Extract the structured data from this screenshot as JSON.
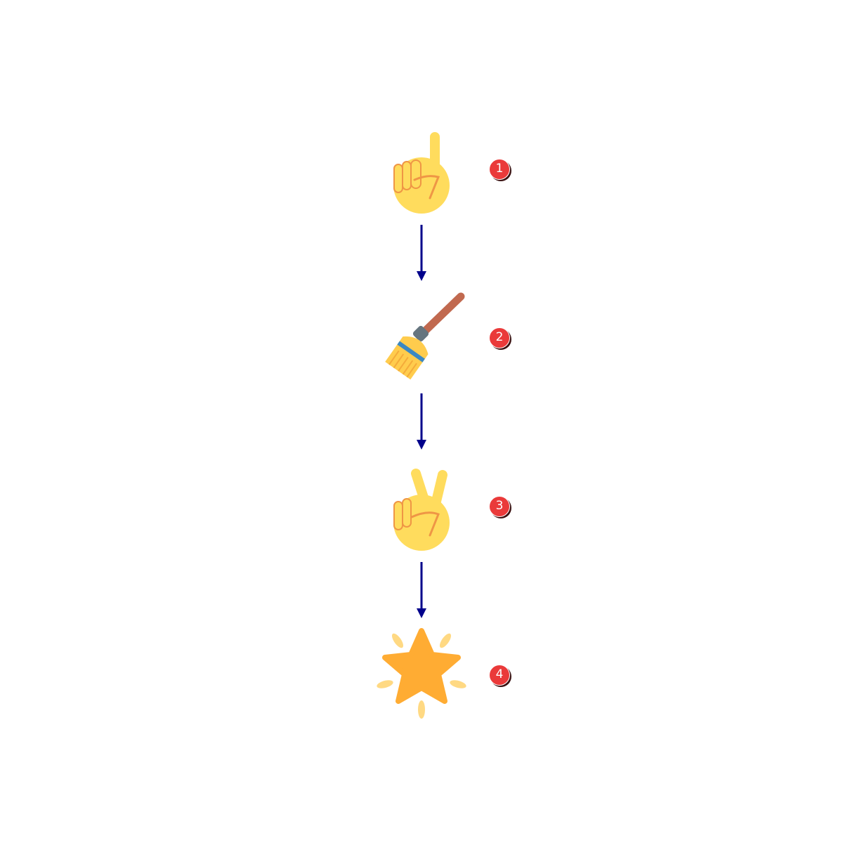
{
  "colors": {
    "arrow": "#00008b",
    "badge": "#ea3a3a",
    "skin": "#ffdc5d",
    "skin_line": "#ef9645",
    "star": "#ffac33",
    "sparkle": "#ffd983",
    "broom_handle": "#c1694f",
    "broom_band": "#3b88c3"
  },
  "steps": [
    {
      "number": "1",
      "icon": "index-pointing-up-icon"
    },
    {
      "number": "2",
      "icon": "broom-icon"
    },
    {
      "number": "3",
      "icon": "victory-hand-icon"
    },
    {
      "number": "4",
      "icon": "glowing-star-icon"
    }
  ]
}
